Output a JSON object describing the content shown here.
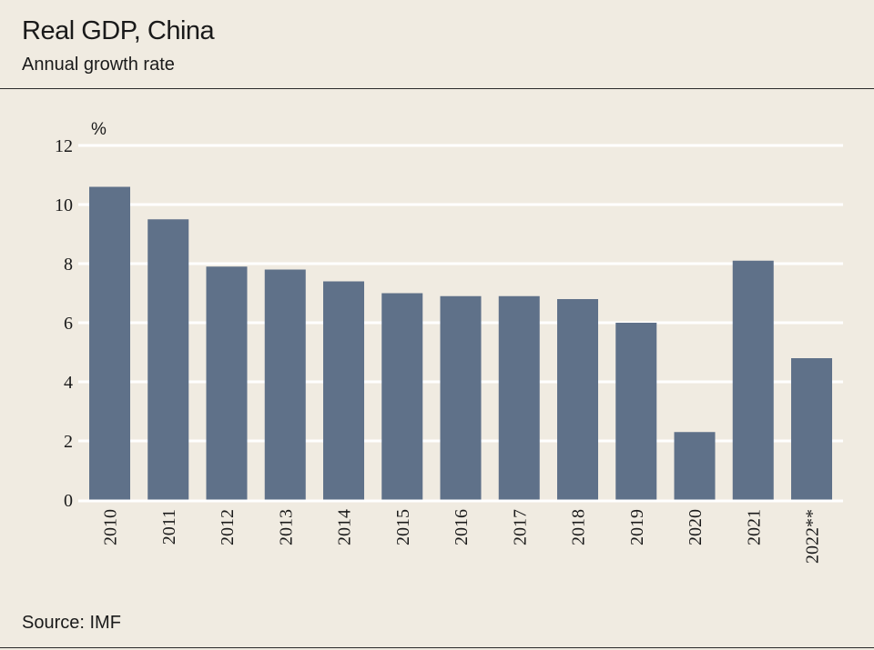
{
  "header": {
    "title": "Real GDP, China",
    "subtitle": "Annual growth rate"
  },
  "footer": {
    "source": "Source: IMF"
  },
  "colors": {
    "background": "#f0ebe1",
    "bar": "#5f7189",
    "grid": "#ffffff",
    "rule": "#2a2a2a"
  },
  "chart_data": {
    "type": "bar",
    "title": "Real GDP, China",
    "subtitle": "Annual growth rate",
    "xlabel": "",
    "ylabel": "%",
    "categories": [
      "2010",
      "2011",
      "2012",
      "2013",
      "2014",
      "2015",
      "2016",
      "2017",
      "2018",
      "2019",
      "2020",
      "2021",
      "2022**"
    ],
    "values": [
      10.6,
      9.5,
      7.9,
      7.8,
      7.4,
      7.0,
      6.9,
      6.9,
      6.8,
      6.0,
      2.3,
      8.1,
      4.8
    ],
    "ylim": [
      0,
      12
    ],
    "yticks": [
      "0",
      "2",
      "4",
      "6",
      "8",
      "10",
      "12"
    ],
    "grid": true,
    "legend": "none"
  }
}
